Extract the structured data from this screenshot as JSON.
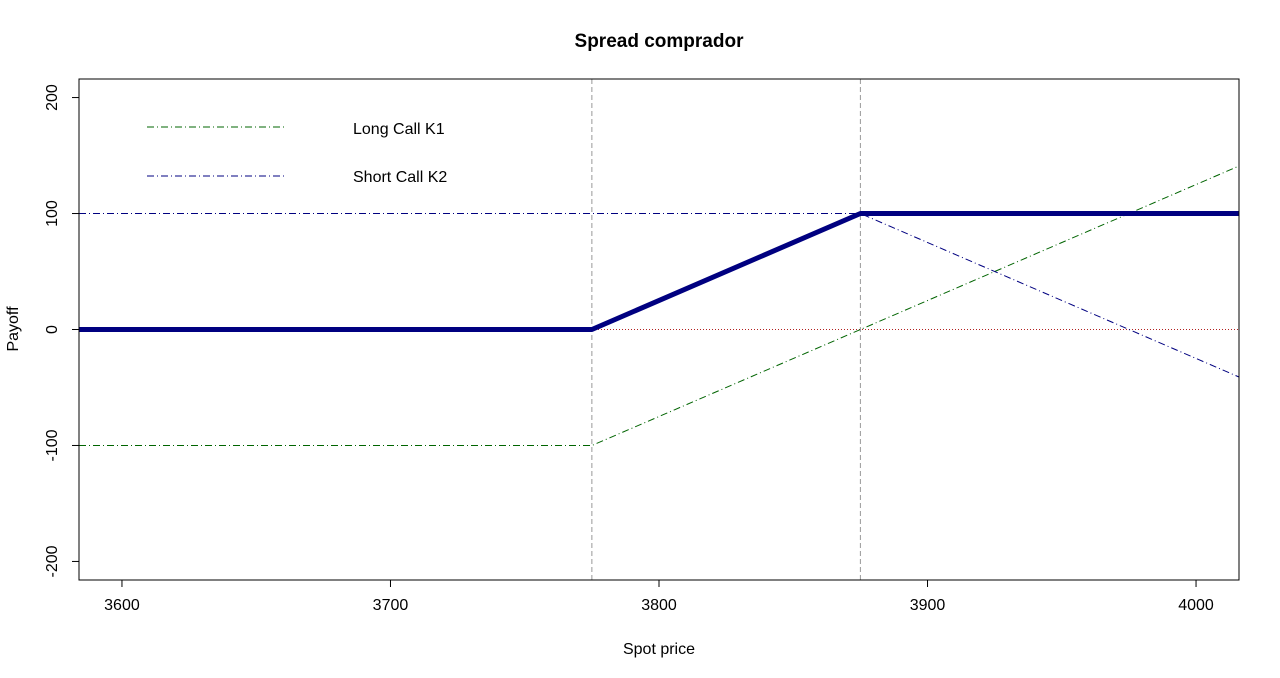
{
  "chart_data": {
    "type": "line",
    "title": "Spread comprador",
    "xlabel": "Spot price",
    "ylabel": "Payoff",
    "xlim": [
      3584,
      4016
    ],
    "ylim": [
      -216,
      216
    ],
    "x_ticks": [
      3600,
      3700,
      3800,
      3900,
      4000
    ],
    "y_ticks": [
      -200,
      -100,
      0,
      100,
      200
    ],
    "strikes": [
      3775,
      3875
    ],
    "series": [
      {
        "name": "Long Call K1",
        "style": "dash-dot",
        "color": "#006400",
        "x": [
          3584,
          3775,
          4016
        ],
        "y": [
          -100,
          -100,
          141
        ]
      },
      {
        "name": "Short Call K2",
        "style": "dash-dot",
        "color": "#000080",
        "x": [
          3584,
          3875,
          4016
        ],
        "y": [
          100,
          100,
          -41
        ]
      },
      {
        "style": "solid-thick",
        "color": "#000080",
        "x": [
          3584,
          3775,
          3875,
          4016
        ],
        "y": [
          0,
          0,
          100,
          100
        ]
      }
    ],
    "reference_lines": {
      "zero_line_color": "#b22222",
      "strike_line_color": "#999999"
    },
    "legend": {
      "position": "top-left",
      "entries": [
        "Long Call K1",
        "Short Call K2"
      ]
    },
    "grid": false
  }
}
